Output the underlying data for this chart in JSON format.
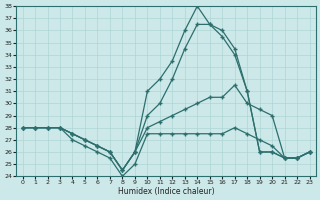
{
  "xlabel": "Humidex (Indice chaleur)",
  "line_color": "#2d6e6e",
  "bg_color": "#cce8e8",
  "grid_color": "#aed4d4",
  "ylim": [
    24,
    38
  ],
  "yticks": [
    24,
    25,
    26,
    27,
    28,
    29,
    30,
    31,
    32,
    33,
    34,
    35,
    36,
    37,
    38
  ],
  "xticks": [
    0,
    1,
    2,
    3,
    4,
    5,
    6,
    7,
    8,
    9,
    10,
    11,
    12,
    13,
    14,
    15,
    16,
    17,
    18,
    19,
    20,
    21,
    22,
    23
  ],
  "x": [
    0,
    1,
    2,
    3,
    4,
    5,
    6,
    7,
    8,
    9,
    10,
    11,
    12,
    13,
    14,
    15,
    16,
    17,
    18,
    19,
    20,
    21,
    22,
    23
  ],
  "y_peak": [
    28,
    28,
    28,
    28,
    27.5,
    27,
    26.5,
    26,
    24.5,
    26,
    31,
    32,
    33.5,
    36,
    38,
    36.5,
    36,
    34.5,
    31,
    26,
    26,
    25.5,
    25.5,
    26
  ],
  "y_high": [
    28,
    28,
    28,
    28,
    27.5,
    27,
    26.5,
    26,
    24.5,
    26,
    29,
    30,
    32,
    34.5,
    36.5,
    36.5,
    35.5,
    34,
    31,
    26,
    26,
    25.5,
    25.5,
    26
  ],
  "y_mid": [
    28,
    28,
    28,
    28,
    27.5,
    27,
    26.5,
    26,
    24.5,
    26,
    28,
    28.5,
    29,
    29.5,
    30,
    30.5,
    30.5,
    31.5,
    30,
    29.5,
    29,
    25.5,
    25.5,
    26
  ],
  "y_low": [
    28,
    28,
    28,
    28,
    27,
    26.5,
    26,
    25.5,
    24,
    25,
    27.5,
    27.5,
    27.5,
    27.5,
    27.5,
    27.5,
    27.5,
    28,
    27.5,
    27,
    26.5,
    25.5,
    25.5,
    26
  ]
}
